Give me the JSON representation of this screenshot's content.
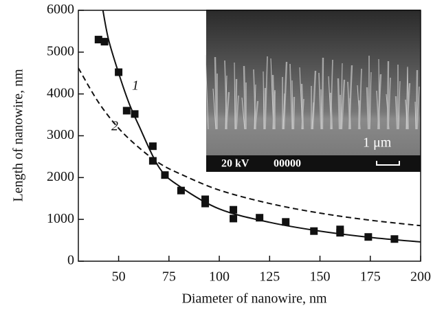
{
  "chart_data": {
    "type": "scatter",
    "x_label": "Diameter of nanowire, nm",
    "y_label": "Length of nanowire, nm",
    "xlim": [
      30,
      200
    ],
    "xticks": [
      50,
      75,
      100,
      125,
      150,
      175,
      200
    ],
    "ylim": [
      0,
      6000
    ],
    "yticks": [
      0,
      1000,
      2000,
      3000,
      4000,
      5000,
      6000
    ],
    "color": "#111111",
    "points": {
      "x": [
        40,
        43,
        50,
        54,
        58,
        67,
        67,
        73,
        81,
        93,
        93,
        107,
        107,
        120,
        133,
        147,
        160,
        160,
        174,
        187
      ],
      "y": [
        5300,
        5250,
        4520,
        3600,
        3520,
        2750,
        2400,
        2060,
        1690,
        1480,
        1380,
        1230,
        1020,
        1040,
        940,
        720,
        760,
        680,
        580,
        530
      ]
    },
    "curves": [
      {
        "label": "1",
        "dashed": false,
        "x": [
          42.2,
          45,
          50,
          55,
          60,
          70,
          80,
          100,
          125,
          150,
          175,
          200
        ],
        "y": [
          6000,
          5300,
          4500,
          3800,
          3250,
          2250,
          1800,
          1250,
          930,
          720,
          570,
          460
        ]
      },
      {
        "label": "2",
        "dashed": true,
        "x": [
          30,
          40,
          50,
          60,
          70,
          80,
          100,
          125,
          150,
          175,
          200
        ],
        "y": [
          4620,
          3800,
          3180,
          2720,
          2350,
          2100,
          1700,
          1380,
          1150,
          980,
          850
        ]
      }
    ],
    "inset": {
      "voltage": "20 kV",
      "code": "00000",
      "scale": "1 μm"
    }
  }
}
